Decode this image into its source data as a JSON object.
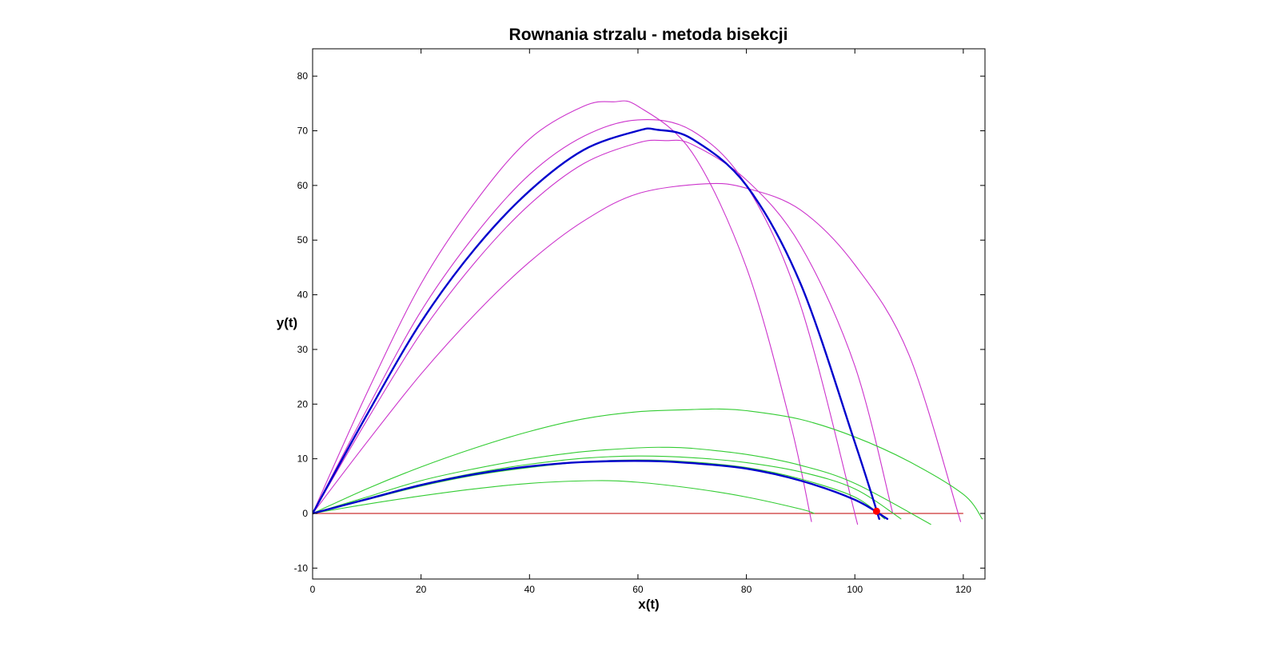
{
  "chart_data": {
    "type": "line",
    "title": "Rownania strzalu - metoda bisekcji",
    "xlabel": "x(t)",
    "ylabel": "y(t)",
    "xlim": [
      0,
      124
    ],
    "ylim": [
      -12,
      85
    ],
    "xticks": [
      "0",
      "20",
      "40",
      "60",
      "80",
      "100",
      "120"
    ],
    "yticks": [
      "-10",
      "0",
      "10",
      "20",
      "30",
      "40",
      "50",
      "60",
      "70",
      "80"
    ],
    "grid": false,
    "legend": "none",
    "colors": {
      "high_trials": "#cc33cc",
      "low_trials": "#33cc33",
      "solutions": "#0000cc",
      "ground": "#cc3333",
      "target": "#ff0000"
    },
    "series": [
      {
        "group": "high",
        "x": [
          0,
          10,
          20,
          30,
          40,
          50,
          55.5,
          60,
          70,
          80,
          88,
          92
        ],
        "y": [
          0,
          22,
          42,
          57,
          68.5,
          74.5,
          75.3,
          74.5,
          66,
          45,
          17,
          -1.5
        ]
      },
      {
        "group": "high",
        "x": [
          0,
          10,
          20,
          30,
          40,
          50,
          60,
          70,
          80,
          90,
          100.5
        ],
        "y": [
          0,
          19,
          37,
          51,
          62,
          69,
          72,
          70,
          60,
          38,
          -2
        ]
      },
      {
        "group": "high",
        "x": [
          0,
          10,
          20,
          30,
          40,
          50,
          60,
          65,
          70,
          80,
          90,
          100,
          107
        ],
        "y": [
          0,
          17,
          33,
          46,
          56.5,
          64,
          67.8,
          68.2,
          67.5,
          61,
          49,
          27,
          0
        ]
      },
      {
        "group": "high",
        "x": [
          0,
          10,
          20,
          30,
          40,
          50,
          60,
          72.5,
          80,
          90,
          100,
          110,
          119.5
        ],
        "y": [
          0,
          13,
          25.5,
          36.5,
          46,
          53.5,
          58.5,
          60.3,
          59.5,
          55.5,
          45.5,
          29,
          -1.5
        ]
      },
      {
        "group": "low",
        "x": [
          0,
          10,
          20,
          30,
          40,
          50,
          60,
          70,
          75,
          80,
          90,
          100,
          110,
          120,
          123.5
        ],
        "y": [
          0,
          4.5,
          8.5,
          12,
          15,
          17.3,
          18.6,
          19,
          19.1,
          18.8,
          17.2,
          14,
          9.5,
          3.5,
          -1
        ]
      },
      {
        "group": "low",
        "x": [
          0,
          10,
          20,
          30,
          40,
          50,
          60,
          65,
          70,
          80,
          90,
          100,
          114
        ],
        "y": [
          0,
          3,
          6,
          8.2,
          10,
          11.3,
          12,
          12.1,
          11.9,
          10.8,
          8.8,
          5.5,
          -2
        ]
      },
      {
        "group": "low",
        "x": [
          0,
          10,
          20,
          30,
          40,
          50,
          60,
          70,
          80,
          90,
          100,
          108.5
        ],
        "y": [
          0,
          2.7,
          5.3,
          7.4,
          9,
          10.1,
          10.5,
          10.2,
          9.3,
          7.6,
          4.5,
          -1
        ]
      },
      {
        "group": "low",
        "x": [
          0,
          10,
          20,
          30,
          40,
          50,
          60,
          70,
          80,
          90,
          100,
          105.5
        ],
        "y": [
          0,
          2.5,
          5,
          7,
          8.4,
          9.4,
          9.8,
          9.4,
          8.4,
          6.3,
          3,
          -1
        ]
      },
      {
        "group": "low",
        "x": [
          0,
          10,
          20,
          30,
          40,
          52,
          60,
          70,
          80,
          90,
          92.5
        ],
        "y": [
          0,
          1.7,
          3.2,
          4.5,
          5.5,
          6,
          5.7,
          4.6,
          3,
          0.8,
          0
        ]
      },
      {
        "group": "solution",
        "x": [
          0,
          10,
          20,
          30,
          40,
          50,
          60,
          63.5,
          70,
          80,
          90,
          100,
          104.5
        ],
        "y": [
          0,
          18,
          35,
          48.5,
          59,
          66.5,
          70,
          70.2,
          68.5,
          60,
          42,
          13,
          -1
        ]
      },
      {
        "group": "solution",
        "x": [
          0,
          10,
          20,
          30,
          40,
          50,
          62,
          70,
          80,
          90,
          100,
          106
        ],
        "y": [
          0,
          2.6,
          5.2,
          7.2,
          8.6,
          9.4,
          9.6,
          9.2,
          8.2,
          6,
          2.5,
          -1
        ]
      }
    ],
    "ground_line": {
      "x": [
        0,
        120
      ],
      "y": [
        0,
        0
      ]
    },
    "target_point": {
      "x": 104,
      "y": 0.4
    }
  }
}
